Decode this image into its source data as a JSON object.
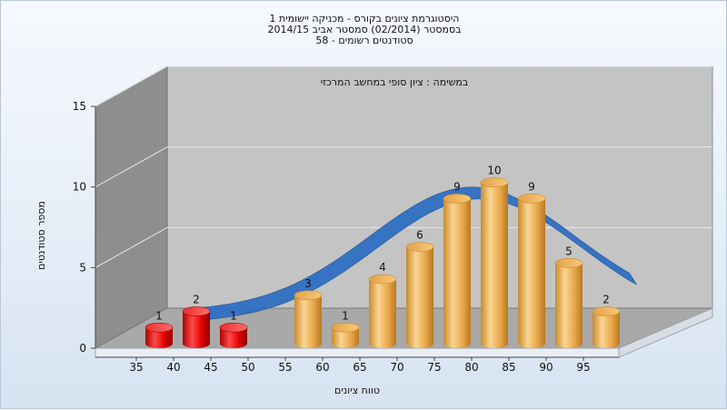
{
  "chart_data": {
    "type": "bar",
    "title_lines": [
      "היסטוגרמת ציונים בקורס - מכניקה יישומית 1",
      "בסמסטר  (02/2014)  סמסטר אביב 2014/15",
      "סטודנטים רשומים - 58"
    ],
    "subtitle": "במשימה : ציון סופי במחשב המרכזי",
    "xlabel": "טווח ציונים",
    "ylabel": "מספר סטודנטים",
    "ylim": [
      0,
      15
    ],
    "yticks": [
      0,
      5,
      10,
      15
    ],
    "x_ticks": [
      "35",
      "40",
      "45",
      "50",
      "55",
      "60",
      "65",
      "70",
      "75",
      "80",
      "85",
      "90",
      "95"
    ],
    "categories": [
      "35",
      "40",
      "45",
      "55",
      "60",
      "65",
      "70",
      "75",
      "80",
      "85",
      "90",
      "95"
    ],
    "values": [
      1,
      2,
      1,
      3,
      1,
      4,
      6,
      9,
      10,
      9,
      5,
      2
    ],
    "failing_below": 50,
    "colors": {
      "failing": "#e00000",
      "passing": "#f0b860",
      "curve": "#2f6fc2"
    },
    "grid": true,
    "curve": "normal-distribution"
  }
}
